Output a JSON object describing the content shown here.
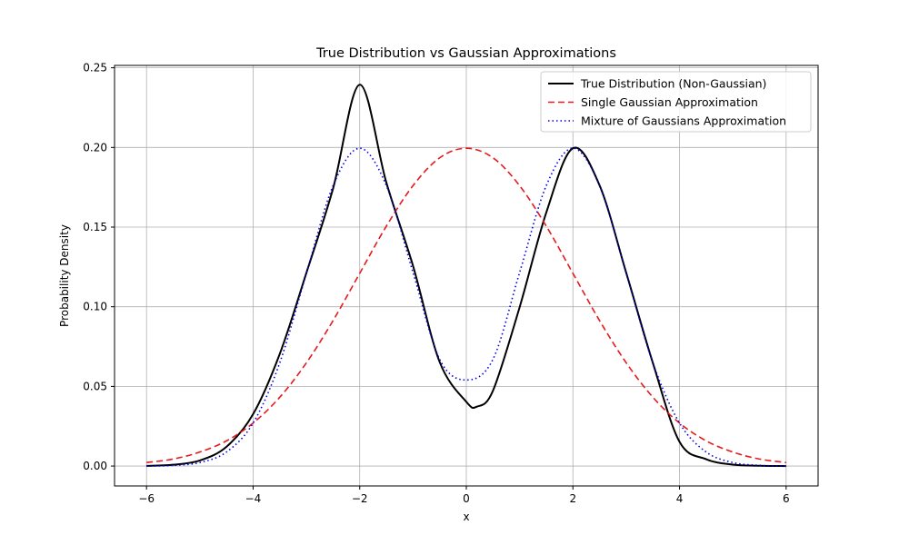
{
  "chart_data": {
    "type": "line",
    "title": "True Distribution vs Gaussian Approximations",
    "xlabel": "x",
    "ylabel": "Probability Density",
    "xlim": [
      -6.6,
      6.6
    ],
    "ylim": [
      -0.0125,
      0.2515
    ],
    "xticks": [
      -6,
      -4,
      -2,
      0,
      2,
      4,
      6
    ],
    "xtick_labels": [
      "−6",
      "−4",
      "−2",
      "0",
      "2",
      "4",
      "6"
    ],
    "yticks": [
      0.0,
      0.05,
      0.1,
      0.15,
      0.2,
      0.25
    ],
    "ytick_labels": [
      "0.00",
      "0.05",
      "0.10",
      "0.15",
      "0.20",
      "0.25"
    ],
    "grid": true,
    "legend_position": "top-right",
    "series": [
      {
        "name": "True Distribution (Non-Gaussian)",
        "color": "#000000",
        "style": "solid",
        "x": [
          -6,
          -5.5,
          -5,
          -4.5,
          -4,
          -3.5,
          -3,
          -2.5,
          -2,
          -1.5,
          -1,
          -0.5,
          0,
          0.2,
          0.5,
          1,
          1.5,
          2,
          2.5,
          3,
          3.5,
          4,
          4.5,
          5,
          5.5,
          6
        ],
        "y": [
          0.0001,
          0.0008,
          0.0035,
          0.0121,
          0.0326,
          0.0704,
          0.1213,
          0.1742,
          0.2394,
          0.1779,
          0.1257,
          0.0653,
          0.0403,
          0.0373,
          0.0473,
          0.0997,
          0.1591,
          0.1995,
          0.1762,
          0.1213,
          0.0647,
          0.0152,
          0.0043,
          0.0009,
          0.0002,
          0.0
        ]
      },
      {
        "name": "Single Gaussian Approximation",
        "color": "#e41a1c",
        "style": "dashed",
        "x": [
          -6,
          -5.5,
          -5,
          -4.5,
          -4,
          -3.5,
          -3,
          -2.5,
          -2,
          -1.5,
          -1,
          -0.5,
          0,
          0.5,
          1,
          1.5,
          2,
          2.5,
          3,
          3.5,
          4,
          4.5,
          5,
          5.5,
          6
        ],
        "y": [
          0.0022,
          0.0044,
          0.0088,
          0.0158,
          0.027,
          0.0432,
          0.0648,
          0.0913,
          0.121,
          0.1506,
          0.176,
          0.1935,
          0.1995,
          0.1935,
          0.176,
          0.1506,
          0.121,
          0.0913,
          0.0648,
          0.0432,
          0.027,
          0.0158,
          0.0088,
          0.0044,
          0.0022
        ]
      },
      {
        "name": "Mixture of Gaussians Approximation",
        "color": "#0000e6",
        "style": "dotted",
        "x": [
          -6,
          -5.5,
          -5,
          -4.5,
          -4,
          -3.5,
          -3,
          -2.5,
          -2,
          -1.5,
          -1,
          -0.5,
          0,
          0.5,
          1,
          1.5,
          2,
          2.5,
          3,
          3.5,
          4,
          4.5,
          5,
          5.5,
          6
        ],
        "y": [
          0.0,
          0.0004,
          0.0022,
          0.0088,
          0.027,
          0.0648,
          0.121,
          0.176,
          0.1995,
          0.176,
          0.1215,
          0.067,
          0.054,
          0.067,
          0.1215,
          0.176,
          0.1995,
          0.176,
          0.121,
          0.0648,
          0.027,
          0.0088,
          0.0022,
          0.0004,
          0.0
        ]
      }
    ]
  }
}
